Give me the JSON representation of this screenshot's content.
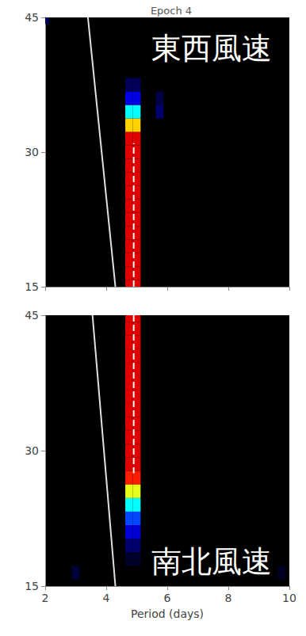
{
  "chart_data": [
    {
      "type": "heatmap",
      "title": "Epoch 4",
      "annotation": "東西風速",
      "xlim": [
        2,
        10
      ],
      "xticks": [
        2,
        4,
        6,
        8,
        10
      ],
      "ylim": [
        15,
        45
      ],
      "yticks": [
        15,
        30,
        45
      ],
      "tick_labels": "y",
      "value_range": [
        0,
        1
      ],
      "cells": [
        [
          4.75,
          15,
          1
        ],
        [
          5.0,
          15,
          1
        ],
        [
          4.75,
          16.5,
          1
        ],
        [
          5.0,
          16.5,
          1
        ],
        [
          4.75,
          18,
          1
        ],
        [
          5.0,
          18,
          1
        ],
        [
          4.75,
          19.5,
          1
        ],
        [
          5.0,
          19.5,
          1
        ],
        [
          4.75,
          21,
          1
        ],
        [
          5.0,
          21,
          1
        ],
        [
          4.75,
          22.5,
          1
        ],
        [
          5.0,
          22.5,
          1
        ],
        [
          4.75,
          24,
          1
        ],
        [
          5.0,
          24,
          1
        ],
        [
          4.75,
          25.5,
          1
        ],
        [
          5.0,
          25.5,
          1
        ],
        [
          4.75,
          27,
          1
        ],
        [
          5.0,
          27,
          1
        ],
        [
          4.75,
          28.5,
          1
        ],
        [
          5.0,
          28.5,
          1
        ],
        [
          4.75,
          30,
          1
        ],
        [
          5.0,
          30,
          1
        ],
        [
          4.75,
          31.5,
          1
        ],
        [
          5.0,
          31.5,
          1
        ],
        [
          4.75,
          33,
          0.7
        ],
        [
          5.0,
          33,
          0.7
        ],
        [
          4.75,
          34.5,
          0.5
        ],
        [
          5.0,
          34.5,
          0.5
        ],
        [
          4.75,
          36,
          0.3
        ],
        [
          5.0,
          36,
          0.3
        ],
        [
          4.75,
          37.5,
          0.12
        ],
        [
          5.0,
          37.5,
          0.12
        ],
        [
          5.75,
          34.5,
          0.15
        ],
        [
          5.75,
          36,
          0.1
        ],
        [
          2.0,
          45,
          0.12
        ]
      ],
      "series": [
        {
          "type": "line",
          "color": "#e0e0e0",
          "line_style": "solid",
          "x": [
            3.4,
            3.55,
            3.7,
            3.85,
            4.0,
            4.15,
            4.3
          ],
          "y": [
            45,
            40,
            35,
            30,
            25,
            20,
            15
          ]
        },
        {
          "type": "line",
          "color": "#ffffff",
          "line_style": "dashed",
          "x": [
            4.9,
            4.9
          ],
          "y": [
            15,
            31
          ]
        }
      ]
    },
    {
      "type": "heatmap",
      "annotation": "南北風速",
      "xlabel": "Period (days)",
      "xlim": [
        2,
        10
      ],
      "xticks": [
        2,
        4,
        6,
        8,
        10
      ],
      "ylim": [
        15,
        45
      ],
      "yticks": [
        15,
        30,
        45
      ],
      "value_range": [
        0,
        1
      ],
      "cells": [
        [
          4.75,
          45,
          1
        ],
        [
          5.0,
          45,
          1
        ],
        [
          4.75,
          43.5,
          1
        ],
        [
          5.0,
          43.5,
          1
        ],
        [
          4.75,
          42,
          1
        ],
        [
          5.0,
          42,
          1
        ],
        [
          4.75,
          40.5,
          1
        ],
        [
          5.0,
          40.5,
          1
        ],
        [
          4.75,
          39,
          1
        ],
        [
          5.0,
          39,
          1
        ],
        [
          4.75,
          37.5,
          1
        ],
        [
          5.0,
          37.5,
          1
        ],
        [
          4.75,
          36,
          1
        ],
        [
          5.0,
          36,
          1
        ],
        [
          4.75,
          34.5,
          1
        ],
        [
          5.0,
          34.5,
          1
        ],
        [
          4.75,
          33,
          1
        ],
        [
          5.0,
          33,
          1
        ],
        [
          4.75,
          31.5,
          1
        ],
        [
          5.0,
          31.5,
          1
        ],
        [
          4.75,
          30,
          1
        ],
        [
          5.0,
          30,
          1
        ],
        [
          4.75,
          28.5,
          1
        ],
        [
          5.0,
          28.5,
          1
        ],
        [
          4.75,
          27,
          0.85
        ],
        [
          5.0,
          27,
          0.85
        ],
        [
          4.75,
          25.5,
          0.65
        ],
        [
          5.0,
          25.5,
          0.65
        ],
        [
          4.75,
          24,
          0.5
        ],
        [
          5.0,
          24,
          0.5
        ],
        [
          4.75,
          22.5,
          0.38
        ],
        [
          5.0,
          22.5,
          0.38
        ],
        [
          4.75,
          21,
          0.28
        ],
        [
          5.0,
          21,
          0.28
        ],
        [
          4.75,
          19.5,
          0.15
        ],
        [
          5.0,
          19.5,
          0.15
        ],
        [
          4.75,
          18,
          0.06
        ],
        [
          5.0,
          18,
          0.06
        ],
        [
          3.0,
          16.5,
          0.08
        ],
        [
          9.75,
          16.5,
          0.05
        ]
      ],
      "series": [
        {
          "type": "line",
          "color": "#e0e0e0",
          "line_style": "solid",
          "x": [
            3.55,
            3.7,
            3.85,
            4.0,
            4.15,
            4.3
          ],
          "y": [
            45,
            39,
            33,
            27,
            21,
            15
          ]
        },
        {
          "type": "line",
          "color": "#ffffff",
          "line_style": "dashed",
          "x": [
            4.9,
            4.9
          ],
          "y": [
            45,
            27.5
          ]
        }
      ]
    }
  ]
}
